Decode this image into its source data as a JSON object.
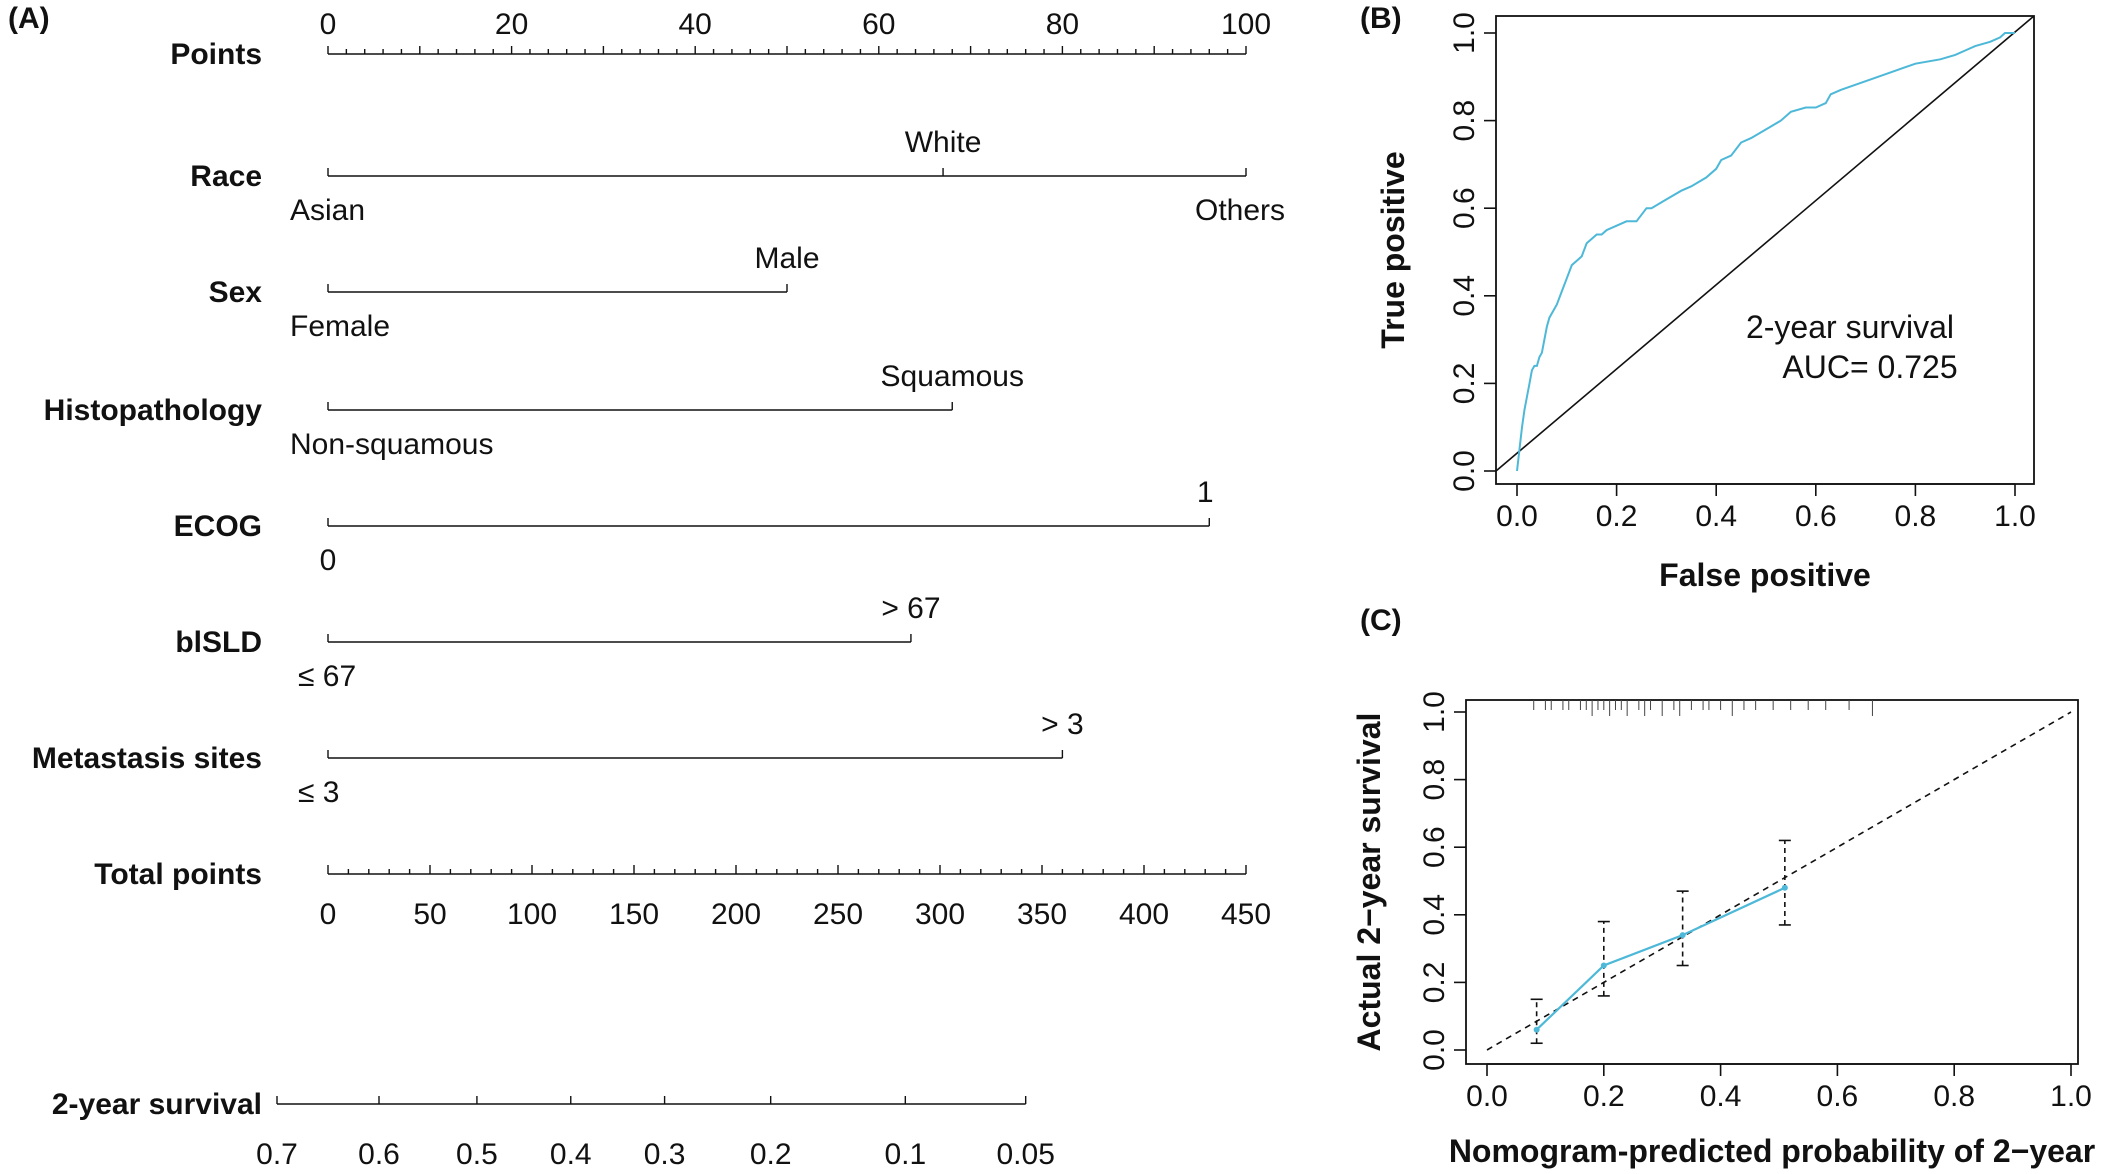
{
  "panels": {
    "a": "(A)",
    "b": "(B)",
    "c": "(C)"
  },
  "colors": {
    "curve": "#4db8d8",
    "line": "#111111"
  },
  "chart_data": [
    {
      "type": "nomogram",
      "rows": [
        {
          "label": "Points",
          "kind": "scale",
          "min": 0,
          "max": 100,
          "ticks": [
            0,
            20,
            40,
            60,
            80,
            100
          ]
        },
        {
          "label": "Race",
          "kind": "factor",
          "levels": [
            {
              "name": "Asian",
              "points": 0
            },
            {
              "name": "White",
              "points": 67
            },
            {
              "name": "Others",
              "points": 100
            }
          ]
        },
        {
          "label": "Sex",
          "kind": "factor",
          "levels": [
            {
              "name": "Female",
              "points": 0
            },
            {
              "name": "Male",
              "points": 50
            }
          ]
        },
        {
          "label": "Histopathology",
          "kind": "factor",
          "levels": [
            {
              "name": "Non-squamous",
              "points": 0
            },
            {
              "name": "Squamous",
              "points": 68
            }
          ]
        },
        {
          "label": "ECOG",
          "kind": "factor",
          "levels": [
            {
              "name": "0",
              "points": 0
            },
            {
              "name": "1",
              "points": 96
            }
          ]
        },
        {
          "label": "blSLD",
          "kind": "factor",
          "levels": [
            {
              "name": "≤ 67",
              "points": 0
            },
            {
              "name": "> 67",
              "points": 63.5
            }
          ]
        },
        {
          "label": "Metastasis sites",
          "kind": "factor",
          "levels": [
            {
              "name": "≤ 3",
              "points": 0
            },
            {
              "name": "> 3",
              "points": 80
            }
          ]
        },
        {
          "label": "Total points",
          "kind": "scale",
          "min": 0,
          "max": 450,
          "ticks": [
            0,
            50,
            100,
            150,
            200,
            250,
            300,
            350,
            400,
            450
          ]
        },
        {
          "label": "2-year survival",
          "kind": "prob",
          "ticks": [
            {
              "label": "0.7",
              "total": -25
            },
            {
              "label": "0.6",
              "total": 25
            },
            {
              "label": "0.5",
              "total": 73
            },
            {
              "label": "0.4",
              "total": 119
            },
            {
              "label": "0.3",
              "total": 165
            },
            {
              "label": "0.2",
              "total": 217
            },
            {
              "label": "0.1",
              "total": 283
            },
            {
              "label": "0.05",
              "total": 342
            }
          ]
        }
      ]
    },
    {
      "type": "line",
      "xlabel": "False positive",
      "ylabel": "True positive",
      "xlim": [
        0,
        1
      ],
      "ylim": [
        0,
        1
      ],
      "xticks": [
        "0.0",
        "0.2",
        "0.4",
        "0.6",
        "0.8",
        "1.0"
      ],
      "yticks": [
        "0.0",
        "0.2",
        "0.4",
        "0.6",
        "0.8",
        "1.0"
      ],
      "annotation": [
        "2-year survival",
        "AUC= 0.725"
      ],
      "series": [
        {
          "kind": "roc",
          "x": [
            0,
            0.005,
            0.01,
            0.015,
            0.02,
            0.025,
            0.03,
            0.035,
            0.04,
            0.045,
            0.05,
            0.055,
            0.06,
            0.065,
            0.07,
            0.08,
            0.09,
            0.1,
            0.11,
            0.12,
            0.13,
            0.14,
            0.15,
            0.16,
            0.17,
            0.18,
            0.2,
            0.22,
            0.24,
            0.26,
            0.27,
            0.3,
            0.33,
            0.35,
            0.38,
            0.4,
            0.41,
            0.43,
            0.45,
            0.47,
            0.5,
            0.53,
            0.55,
            0.58,
            0.6,
            0.62,
            0.63,
            0.65,
            0.7,
            0.75,
            0.8,
            0.85,
            0.88,
            0.9,
            0.92,
            0.95,
            0.97,
            0.98,
            1.0
          ],
          "y": [
            0,
            0.05,
            0.1,
            0.14,
            0.17,
            0.2,
            0.23,
            0.24,
            0.24,
            0.26,
            0.27,
            0.3,
            0.33,
            0.35,
            0.36,
            0.38,
            0.41,
            0.44,
            0.47,
            0.48,
            0.49,
            0.52,
            0.53,
            0.54,
            0.54,
            0.55,
            0.56,
            0.57,
            0.57,
            0.6,
            0.6,
            0.62,
            0.64,
            0.65,
            0.67,
            0.69,
            0.71,
            0.72,
            0.75,
            0.76,
            0.78,
            0.8,
            0.82,
            0.83,
            0.83,
            0.84,
            0.86,
            0.87,
            0.89,
            0.91,
            0.93,
            0.94,
            0.95,
            0.96,
            0.97,
            0.98,
            0.99,
            1.0,
            1.0
          ]
        },
        {
          "kind": "diagonal",
          "x": [
            0,
            1
          ],
          "y": [
            0,
            1
          ]
        }
      ]
    },
    {
      "type": "line",
      "xlabel": "Nomogram-predicted probability of 2−year",
      "ylabel": "Actual 2−year survival",
      "xlim": [
        0,
        1
      ],
      "ylim": [
        0,
        1
      ],
      "xticks": [
        "0.0",
        "0.2",
        "0.4",
        "0.6",
        "0.8",
        "1.0"
      ],
      "yticks": [
        "0.0",
        "0.2",
        "0.4",
        "0.6",
        "0.8",
        "1.0"
      ],
      "series": [
        {
          "kind": "calibration",
          "x": [
            0.085,
            0.2,
            0.335,
            0.51
          ],
          "y": [
            0.06,
            0.25,
            0.34,
            0.48
          ],
          "lower": [
            0.02,
            0.16,
            0.25,
            0.37
          ],
          "upper": [
            0.15,
            0.38,
            0.47,
            0.62
          ]
        },
        {
          "kind": "reference",
          "x": [
            0,
            1
          ],
          "y": [
            0,
            1
          ]
        }
      ],
      "rug_x": [
        0.08,
        0.1,
        0.11,
        0.13,
        0.14,
        0.16,
        0.17,
        0.18,
        0.19,
        0.2,
        0.21,
        0.22,
        0.23,
        0.24,
        0.26,
        0.27,
        0.28,
        0.3,
        0.32,
        0.33,
        0.35,
        0.37,
        0.38,
        0.4,
        0.42,
        0.44,
        0.46,
        0.49,
        0.52,
        0.55,
        0.58,
        0.62,
        0.66
      ]
    }
  ]
}
